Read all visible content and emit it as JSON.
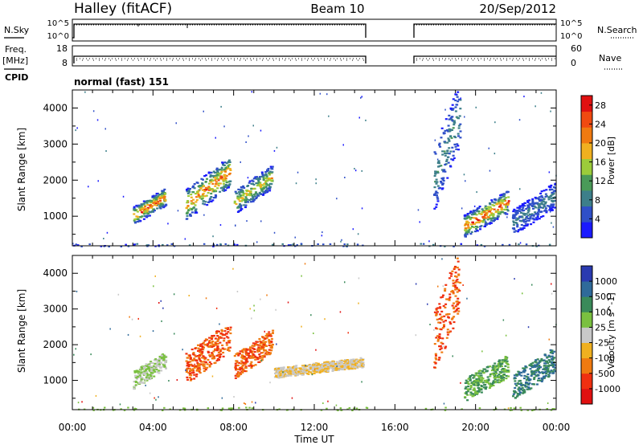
{
  "header": {
    "station": "Halley (fitACF)",
    "beam": "Beam 10",
    "date": "20/Sep/2012"
  },
  "summary": {
    "nsky_label": "N.Sky",
    "nsearch_label": "N.Search",
    "freq_label_1": "Freq.",
    "freq_label_2": "[MHz]",
    "nave_label": "Nave",
    "cpid_label": "CPID",
    "cpid_value": "normal (fast) 151",
    "noise_ticks": [
      "10^5",
      "10^0"
    ],
    "freq_ticks": [
      "18",
      "8"
    ],
    "nave_ticks": [
      "60",
      "0"
    ]
  },
  "colors": {
    "power_scale": [
      "#1a1aff",
      "#2f4fc8",
      "#3d7f8a",
      "#4a9a58",
      "#9ccc3a",
      "#f0b020",
      "#f07a10",
      "#f04a10",
      "#e01010"
    ],
    "velocity_scale": [
      "#2a3ab0",
      "#2f6a9a",
      "#3a8a5a",
      "#7ac040",
      "#c8c8c8",
      "#f0b020",
      "#f07a10",
      "#f03010",
      "#e01010"
    ]
  },
  "chart_data": [
    {
      "type": "heatmap",
      "panel": "power",
      "ylabel": "Slant Range [km]",
      "xlabel": "Time UT",
      "x_ticks": [
        "00:00",
        "04:00",
        "08:00",
        "12:00",
        "16:00",
        "20:00",
        "00:00"
      ],
      "y_ticks": [
        "1000",
        "2000",
        "3000",
        "4000"
      ],
      "xlim_hours": [
        0,
        24
      ],
      "ylim_km": [
        180,
        4500
      ],
      "colorbar": {
        "label": "Power [dB]",
        "ticks": [
          "28",
          "24",
          "20",
          "16",
          "12",
          "8",
          "4"
        ],
        "range": [
          0,
          30
        ]
      },
      "data_gap_hours": [
        14.6,
        17.0
      ],
      "echo_regions": [
        {
          "t_start": 3.0,
          "t_end": 4.6,
          "range_low": 800,
          "range_high": 1700,
          "peak_db": 28
        },
        {
          "t_start": 5.6,
          "t_end": 7.8,
          "range_low": 950,
          "range_high": 2500,
          "peak_db": 26
        },
        {
          "t_start": 8.0,
          "t_end": 9.9,
          "range_low": 1100,
          "range_high": 2300,
          "peak_db": 20
        },
        {
          "t_start": 17.9,
          "t_end": 19.2,
          "range_low": 1200,
          "range_high": 4400,
          "peak_db": 10
        },
        {
          "t_start": 19.4,
          "t_end": 21.6,
          "range_low": 450,
          "range_high": 1600,
          "peak_db": 28
        },
        {
          "t_start": 21.8,
          "t_end": 23.9,
          "range_low": 500,
          "range_high": 1800,
          "peak_db": 8
        }
      ]
    },
    {
      "type": "heatmap",
      "panel": "velocity",
      "ylabel": "Slant Range [km]",
      "xlabel": "Time UT",
      "x_ticks": [
        "00:00",
        "04:00",
        "08:00",
        "12:00",
        "16:00",
        "20:00",
        "00:00"
      ],
      "y_ticks": [
        "1000",
        "2000",
        "3000",
        "4000"
      ],
      "xlim_hours": [
        0,
        24
      ],
      "ylim_km": [
        180,
        4500
      ],
      "colorbar": {
        "label": "Velocity [m s^-1]",
        "ticks": [
          "1000",
          "500",
          "100",
          "25",
          "-25",
          "-100",
          "-500",
          "-1000"
        ]
      },
      "echo_regions": [
        {
          "t_start": 3.0,
          "t_end": 4.6,
          "range_low": 800,
          "range_high": 1700,
          "velocity": 25
        },
        {
          "t_start": 5.6,
          "t_end": 7.8,
          "range_low": 950,
          "range_high": 2500,
          "velocity": -500
        },
        {
          "t_start": 8.0,
          "t_end": 9.9,
          "range_low": 1100,
          "range_high": 2300,
          "velocity": -500
        },
        {
          "t_start": 10.0,
          "t_end": 14.4,
          "range_low": 1100,
          "range_high": 1600,
          "velocity": -25
        },
        {
          "t_start": 17.9,
          "t_end": 19.2,
          "range_low": 1200,
          "range_high": 4400,
          "velocity": -500
        },
        {
          "t_start": 19.4,
          "t_end": 21.6,
          "range_low": 450,
          "range_high": 1600,
          "velocity": 100
        },
        {
          "t_start": 21.8,
          "t_end": 23.9,
          "range_low": 500,
          "range_high": 1800,
          "velocity": 500
        }
      ]
    }
  ]
}
